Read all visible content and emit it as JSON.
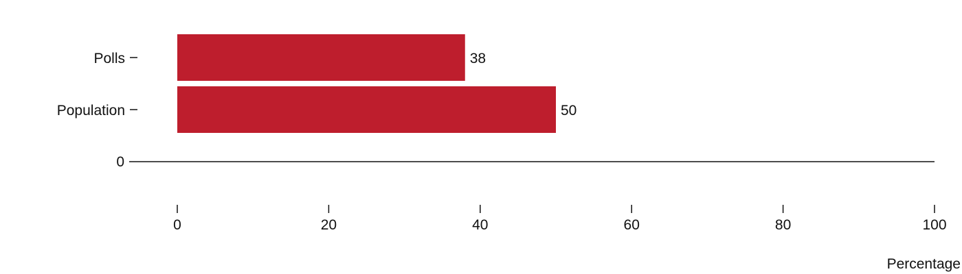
{
  "chart_data": {
    "type": "bar",
    "orientation": "horizontal",
    "categories": [
      "Polls",
      "Population"
    ],
    "values": [
      38,
      50
    ],
    "value_labels": [
      "38",
      "50"
    ],
    "xlabel": "Percentage",
    "ylabel": "",
    "xlim": [
      0,
      100
    ],
    "x_ticks": [
      "0",
      "20",
      "40",
      "60",
      "80",
      "100"
    ],
    "baseline_label": "0",
    "grid": false,
    "legend": false,
    "bar_color": "#be1e2d"
  }
}
